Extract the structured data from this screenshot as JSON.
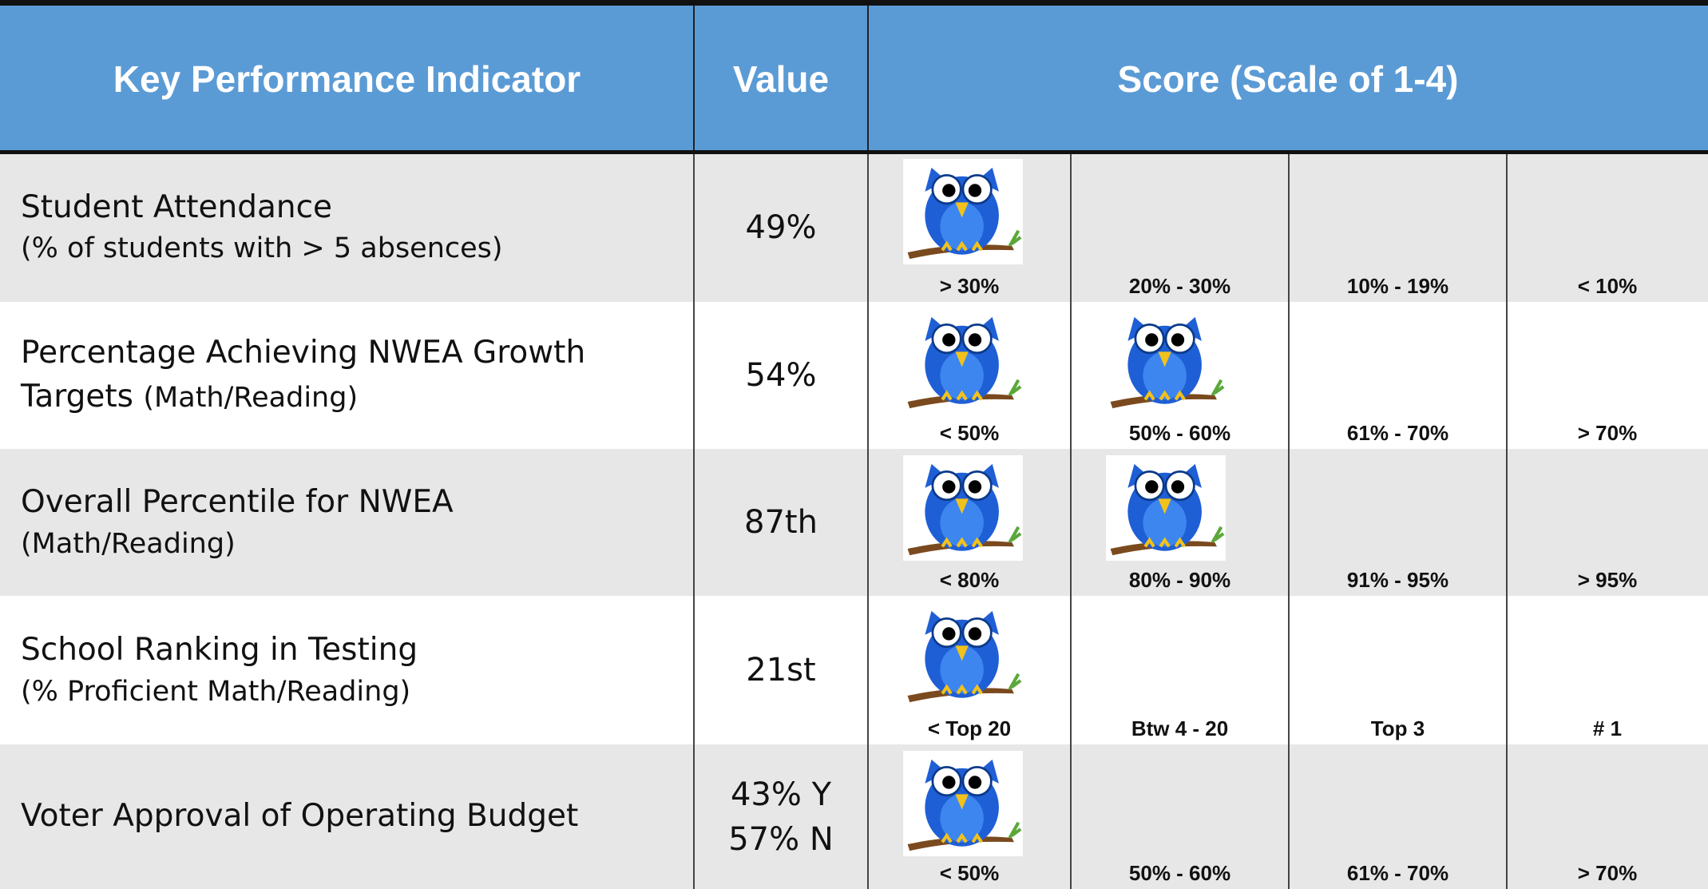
{
  "table": {
    "header": [
      "Key Performance Indicator",
      "Value",
      "Score (Scale of 1-4)"
    ],
    "rows": [
      {
        "title": "Student Attendance",
        "note": "(% of students with > 5 absences)",
        "value": [
          "49%"
        ],
        "scores": [
          "> 30%",
          "20% - 30%",
          "10% - 19%",
          "< 10%"
        ],
        "owls": 1
      },
      {
        "title": "Percentage Achieving NWEA Growth Targets",
        "note": "(Math/Reading)",
        "value": [
          "54%"
        ],
        "scores": [
          "< 50%",
          "50% - 60%",
          "61% - 70%",
          "> 70%"
        ],
        "owls": 2
      },
      {
        "title": "Overall Percentile for NWEA",
        "note": "(Math/Reading)",
        "value": [
          "87th"
        ],
        "scores": [
          "< 80%",
          "80% - 90%",
          "91% - 95%",
          "> 95%"
        ],
        "owls": 2
      },
      {
        "title": "School Ranking in Testing",
        "note": "(% Proficient Math/Reading)",
        "value": [
          "21st"
        ],
        "scores": [
          "< Top 20",
          "Btw 4 - 20",
          "Top 3",
          "# 1"
        ],
        "owls": 1
      },
      {
        "title": "Voter Approval of Operating Budget",
        "value": [
          "43% Y",
          "57% N"
        ],
        "scores": [
          "< 50%",
          "50% - 60%",
          "61% - 70%",
          "> 70%"
        ],
        "owls": 1
      }
    ]
  }
}
